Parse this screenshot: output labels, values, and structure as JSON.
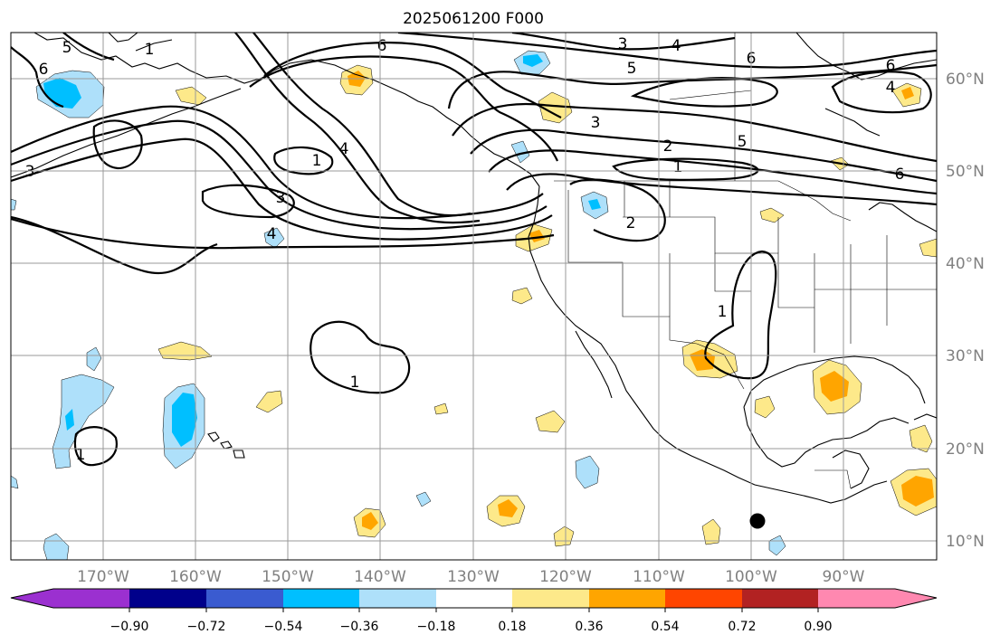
{
  "title": "2025061200 F000",
  "lat_labels": [
    "60°N",
    "50°N",
    "40°N",
    "30°N",
    "20°N",
    "10°N"
  ],
  "lon_labels": [
    "170°W",
    "160°W",
    "150°W",
    "140°W",
    "130°W",
    "120°W",
    "110°W",
    "100°W",
    "90°W"
  ],
  "colorbar": {
    "ticks": [
      "−0.90",
      "−0.72",
      "−0.54",
      "−0.36",
      "−0.18",
      "0.18",
      "0.36",
      "0.54",
      "0.72",
      "0.90"
    ],
    "colors": [
      "#9b30d0",
      "#00008b",
      "#3a5bd0",
      "#00bfff",
      "#aee0fa",
      "#ffffff",
      "#fde98a",
      "#ffa500",
      "#ff4500",
      "#b22222",
      "#ff88b0"
    ]
  },
  "contour_labels": [
    "1",
    "1",
    "1",
    "1",
    "1",
    "1",
    "2",
    "2",
    "3",
    "3",
    "3",
    "3",
    "4",
    "4",
    "4",
    "4",
    "5",
    "5",
    "5",
    "6",
    "6",
    "6",
    "6",
    "6"
  ],
  "colors": {
    "grid": "#9a9a9a",
    "label_gray": "#808080"
  }
}
